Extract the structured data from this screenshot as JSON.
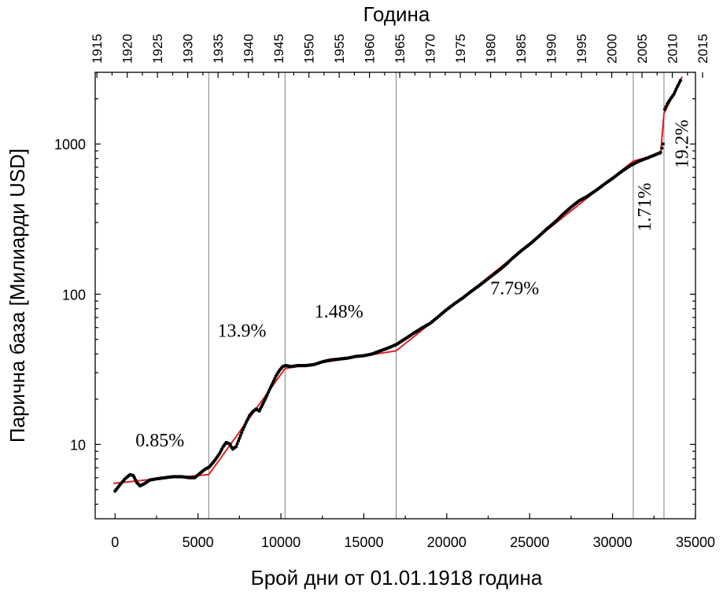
{
  "chart_data": {
    "type": "scatter",
    "title": "",
    "xlabel": "Брой дни от 01.01.1918 година",
    "ylabel": "Парична база [Милиарди USD]",
    "top_xlabel": "Година",
    "xlim": [
      -1200,
      35000
    ],
    "ylim_log": [
      3.2,
      3000
    ],
    "y_scale": "log",
    "x_ticks": [
      0,
      5000,
      10000,
      15000,
      20000,
      25000,
      30000,
      35000
    ],
    "y_ticks": [
      10,
      100,
      1000
    ],
    "top_ticks": [
      1915,
      1920,
      1925,
      1930,
      1935,
      1940,
      1945,
      1950,
      1955,
      1960,
      1965,
      1970,
      1975,
      1980,
      1985,
      1990,
      1995,
      2000,
      2005,
      2010,
      2015
    ],
    "vertical_lines_x": [
      5650,
      10250,
      16950,
      31250,
      33100
    ],
    "series": [
      {
        "kind": "points",
        "color": "#000000",
        "x": [
          0,
          300,
          600,
          900,
          1100,
          1300,
          1500,
          1800,
          2100,
          2500,
          3000,
          3500,
          4000,
          4500,
          4800,
          5100,
          5400,
          5700,
          6000,
          6300,
          6500,
          6700,
          6900,
          7100,
          7300,
          7500,
          7700,
          7900,
          8100,
          8300,
          8500,
          8700,
          8900,
          9100,
          9300,
          9500,
          9700,
          9900,
          10100,
          10300,
          10600,
          11000,
          11500,
          12000,
          12500,
          13000,
          13500,
          14000,
          14500,
          15000,
          15500,
          16000,
          16500,
          17000,
          17500,
          18000,
          18500,
          19000,
          19500,
          20000,
          20500,
          21000,
          21500,
          22000,
          22500,
          23000,
          23500,
          24000,
          24500,
          25000,
          25500,
          26000,
          26500,
          27000,
          27500,
          28000,
          28500,
          29000,
          29500,
          30000,
          30500,
          31000,
          31500,
          32000,
          32500,
          32900,
          33050,
          33150,
          33300,
          33500,
          33700,
          33900,
          34100
        ],
        "y": [
          4.9,
          5.4,
          5.9,
          6.3,
          6.2,
          5.6,
          5.3,
          5.5,
          5.8,
          5.9,
          6.0,
          6.1,
          6.1,
          6.0,
          6.0,
          6.4,
          6.8,
          7.1,
          7.8,
          8.7,
          9.6,
          10.3,
          10.1,
          9.3,
          9.7,
          11.0,
          12.5,
          14.0,
          15.5,
          16.5,
          17.2,
          16.7,
          18.5,
          20.5,
          23.0,
          25.5,
          28.5,
          31.0,
          33.0,
          33.5,
          33.0,
          33.5,
          33.5,
          34.0,
          35.5,
          36.5,
          37.0,
          37.5,
          38.5,
          39.0,
          40.0,
          42.0,
          44.0,
          46.5,
          50.5,
          55.0,
          59.5,
          64.0,
          71.0,
          79.0,
          87.0,
          95.0,
          105.0,
          115.0,
          127.0,
          140.0,
          155.0,
          175.0,
          195.0,
          215.0,
          240.0,
          270.0,
          300.0,
          340.0,
          380.0,
          420.0,
          450.0,
          490.0,
          540.0,
          590.0,
          650.0,
          710.0,
          760.0,
          800.0,
          840.0,
          880.0,
          1000.0,
          1700.0,
          1850.0,
          2000.0,
          2150.0,
          2400.0,
          2650.0
        ]
      },
      {
        "kind": "fit",
        "color": "#e02020",
        "x": [
          -100,
          2500,
          5000,
          5650,
          10250,
          16950,
          31250,
          32900,
          33100,
          34200
        ],
        "y": [
          5.5,
          5.9,
          6.2,
          6.3,
          32.0,
          42.0,
          770.0,
          860.0,
          1600.0,
          2800.0
        ]
      }
    ],
    "annotations": [
      {
        "text": "0.85%",
        "x": 2700,
        "y": 9.7,
        "rotate": 0
      },
      {
        "text": "13.9%",
        "x": 7650,
        "y": 52.0,
        "rotate": 0
      },
      {
        "text": "1.48%",
        "x": 13500,
        "y": 70.0,
        "rotate": 0
      },
      {
        "text": "7.79%",
        "x": 24100,
        "y": 100.0,
        "rotate": 0
      },
      {
        "text": "1.71%",
        "x": 32300,
        "y": 380.0,
        "rotate": -90
      },
      {
        "text": "19.2%",
        "x": 34550,
        "y": 1000.0,
        "rotate": -90
      }
    ]
  }
}
